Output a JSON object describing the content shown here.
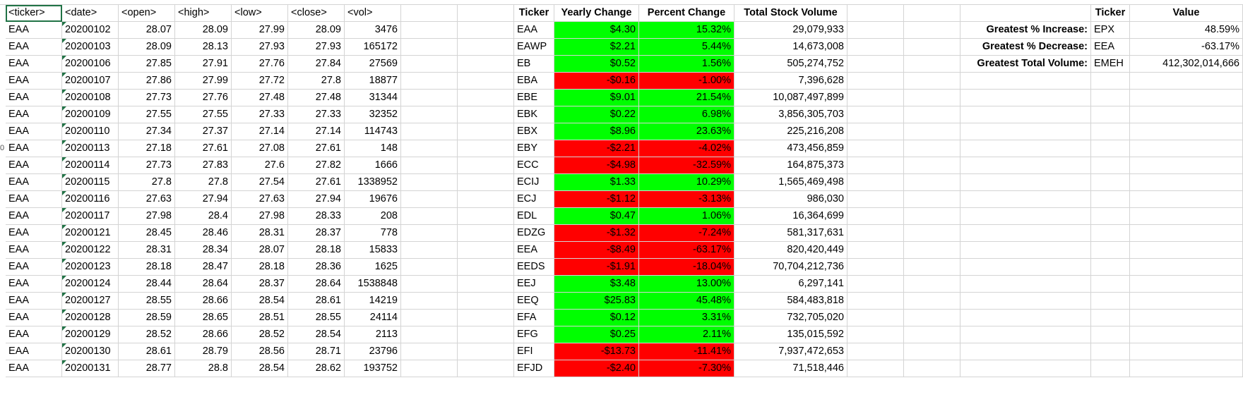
{
  "raw_headers": [
    "<ticker>",
    "<date>",
    "<open>",
    "<high>",
    "<low>",
    "<close>",
    "<vol>"
  ],
  "raw_rows": [
    [
      "EAA",
      "20200102",
      "28.07",
      "28.09",
      "27.99",
      "28.09",
      "3476"
    ],
    [
      "EAA",
      "20200103",
      "28.09",
      "28.13",
      "27.93",
      "27.93",
      "165172"
    ],
    [
      "EAA",
      "20200106",
      "27.85",
      "27.91",
      "27.76",
      "27.84",
      "27569"
    ],
    [
      "EAA",
      "20200107",
      "27.86",
      "27.99",
      "27.72",
      "27.8",
      "18877"
    ],
    [
      "EAA",
      "20200108",
      "27.73",
      "27.76",
      "27.48",
      "27.48",
      "31344"
    ],
    [
      "EAA",
      "20200109",
      "27.55",
      "27.55",
      "27.33",
      "27.33",
      "32352"
    ],
    [
      "EAA",
      "20200110",
      "27.34",
      "27.37",
      "27.14",
      "27.14",
      "114743"
    ],
    [
      "EAA",
      "20200113",
      "27.18",
      "27.61",
      "27.08",
      "27.61",
      "148"
    ],
    [
      "EAA",
      "20200114",
      "27.73",
      "27.83",
      "27.6",
      "27.82",
      "1666"
    ],
    [
      "EAA",
      "20200115",
      "27.8",
      "27.8",
      "27.54",
      "27.61",
      "1338952"
    ],
    [
      "EAA",
      "20200116",
      "27.63",
      "27.94",
      "27.63",
      "27.94",
      "19676"
    ],
    [
      "EAA",
      "20200117",
      "27.98",
      "28.4",
      "27.98",
      "28.33",
      "208"
    ],
    [
      "EAA",
      "20200121",
      "28.45",
      "28.46",
      "28.31",
      "28.37",
      "778"
    ],
    [
      "EAA",
      "20200122",
      "28.31",
      "28.34",
      "28.07",
      "28.18",
      "15833"
    ],
    [
      "EAA",
      "20200123",
      "28.18",
      "28.47",
      "28.18",
      "28.36",
      "1625"
    ],
    [
      "EAA",
      "20200124",
      "28.44",
      "28.64",
      "28.37",
      "28.64",
      "1538848"
    ],
    [
      "EAA",
      "20200127",
      "28.55",
      "28.66",
      "28.54",
      "28.61",
      "14219"
    ],
    [
      "EAA",
      "20200128",
      "28.59",
      "28.65",
      "28.51",
      "28.55",
      "24114"
    ],
    [
      "EAA",
      "20200129",
      "28.52",
      "28.66",
      "28.52",
      "28.54",
      "2113"
    ],
    [
      "EAA",
      "20200130",
      "28.61",
      "28.79",
      "28.56",
      "28.71",
      "23796"
    ],
    [
      "EAA",
      "20200131",
      "28.77",
      "28.8",
      "28.54",
      "28.62",
      "193752"
    ]
  ],
  "summary_headers": [
    "Ticker",
    "Yearly Change",
    "Percent Change",
    "Total Stock Volume"
  ],
  "summary_rows": [
    {
      "ticker": "EAA",
      "change": "$4.30",
      "pct": "15.32%",
      "volume": "29,079,933",
      "positive": true
    },
    {
      "ticker": "EAWP",
      "change": "$2.21",
      "pct": "5.44%",
      "volume": "14,673,008",
      "positive": true
    },
    {
      "ticker": "EB",
      "change": "$0.52",
      "pct": "1.56%",
      "volume": "505,274,752",
      "positive": true
    },
    {
      "ticker": "EBA",
      "change": "-$0.16",
      "pct": "-1.00%",
      "volume": "7,396,628",
      "positive": false
    },
    {
      "ticker": "EBE",
      "change": "$9.01",
      "pct": "21.54%",
      "volume": "10,087,497,899",
      "positive": true
    },
    {
      "ticker": "EBK",
      "change": "$0.22",
      "pct": "6.98%",
      "volume": "3,856,305,703",
      "positive": true
    },
    {
      "ticker": "EBX",
      "change": "$8.96",
      "pct": "23.63%",
      "volume": "225,216,208",
      "positive": true
    },
    {
      "ticker": "EBY",
      "change": "-$2.21",
      "pct": "-4.02%",
      "volume": "473,456,859",
      "positive": false
    },
    {
      "ticker": "ECC",
      "change": "-$4.98",
      "pct": "-32.59%",
      "volume": "164,875,373",
      "positive": false
    },
    {
      "ticker": "ECIJ",
      "change": "$1.33",
      "pct": "10.29%",
      "volume": "1,565,469,498",
      "positive": true
    },
    {
      "ticker": "ECJ",
      "change": "-$1.12",
      "pct": "-3.13%",
      "volume": "986,030",
      "positive": false
    },
    {
      "ticker": "EDL",
      "change": "$0.47",
      "pct": "1.06%",
      "volume": "16,364,699",
      "positive": true
    },
    {
      "ticker": "EDZG",
      "change": "-$1.32",
      "pct": "-7.24%",
      "volume": "581,317,631",
      "positive": false
    },
    {
      "ticker": "EEA",
      "change": "-$8.49",
      "pct": "-63.17%",
      "volume": "820,420,449",
      "positive": false
    },
    {
      "ticker": "EEDS",
      "change": "-$1.91",
      "pct": "-18.04%",
      "volume": "70,704,212,736",
      "positive": false
    },
    {
      "ticker": "EEJ",
      "change": "$3.48",
      "pct": "13.00%",
      "volume": "6,297,141",
      "positive": true
    },
    {
      "ticker": "EEQ",
      "change": "$25.83",
      "pct": "45.48%",
      "volume": "584,483,818",
      "positive": true
    },
    {
      "ticker": "EFA",
      "change": "$0.12",
      "pct": "3.31%",
      "volume": "732,705,020",
      "positive": true
    },
    {
      "ticker": "EFG",
      "change": "$0.25",
      "pct": "2.11%",
      "volume": "135,015,592",
      "positive": true
    },
    {
      "ticker": "EFI",
      "change": "-$13.73",
      "pct": "-11.41%",
      "volume": "7,937,472,653",
      "positive": false
    },
    {
      "ticker": "EFJD",
      "change": "-$2.40",
      "pct": "-7.30%",
      "volume": "71,518,446",
      "positive": false
    }
  ],
  "greatest_headers": [
    "Ticker",
    "Value"
  ],
  "greatest_rows": [
    {
      "label": "Greatest % Increase:",
      "ticker": "EPX",
      "value": "48.59%"
    },
    {
      "label": "Greatest % Decrease:",
      "ticker": "EEA",
      "value": "-63.17%"
    },
    {
      "label": "Greatest Total Volume:",
      "ticker": "EMEH",
      "value": "412,302,014,666"
    }
  ],
  "row_number_slivers": [
    "",
    "",
    "",
    "",
    "",
    "",
    "",
    "",
    "0",
    "",
    "",
    "",
    "",
    "",
    "",
    "",
    "",
    "",
    "",
    "",
    "",
    "",
    ""
  ],
  "colors": {
    "positive": "#00ff00",
    "negative": "#ff0000",
    "gridline": "#d4d4d4",
    "selection": "#217346"
  }
}
